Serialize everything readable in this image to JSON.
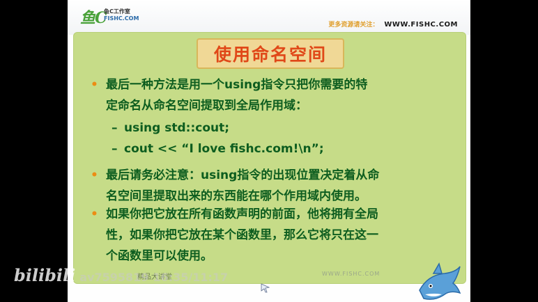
{
  "header": {
    "logo_script": "鱼C",
    "logo_small": "鱼C工作室",
    "logo_site": "FISHC.COM",
    "prefix": "更多资源请关注：",
    "url": "WWW.FISHC.COM"
  },
  "slide": {
    "title": "使用命名空间",
    "bullets": [
      {
        "lines": [
          "最后一种方法是用一个using指令只把你需要的特",
          "定命名从命名空间提取到全局作用域："
        ],
        "sub": [
          "using std::cout;",
          "cout << “I love fishc.com!\\n”;"
        ]
      },
      {
        "lines": [
          "最后请务必注意：using指令的出现位置决定着从命",
          "名空间里提取出来的东西能在哪个作用域内使用。"
        ],
        "sub": []
      },
      {
        "lines": [
          "如果你把它放在所有函数声明的前面，他将拥有全局",
          "性，如果你把它放在某个函数里，那么它将只在这一",
          "个函数里可以使用。"
        ],
        "sub": []
      }
    ]
  },
  "footer": {
    "left": "精品大讲堂",
    "right": "WWW.FISHC.COM"
  },
  "watermark": {
    "logo": "bilibili",
    "id": "av7595819",
    "time": "16:35/11:17"
  },
  "colors": {
    "panel": "#c6dc88",
    "text": "#0d5d1f",
    "title": "#e04818",
    "bullet": "#ec8c14"
  }
}
